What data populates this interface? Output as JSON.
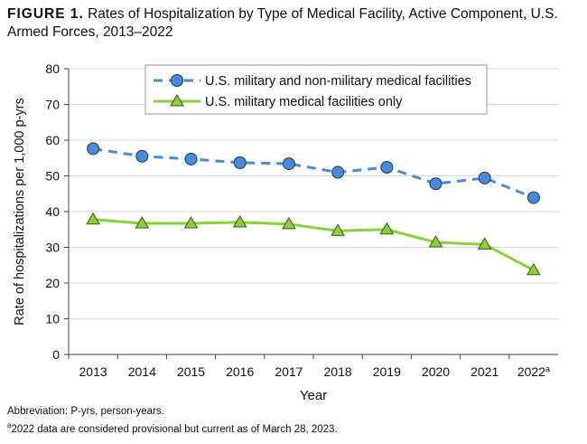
{
  "title": {
    "label": "FIGURE 1.",
    "text": "Rates of Hospitalization by Type of Medical Facility, Active Component, U.S. Armed Forces, 2013–2022"
  },
  "footnotes": {
    "abbrev": "Abbreviation: P-yrs, person-years.",
    "note_marker": "a",
    "note": "2022 data are considered provisional but current as of March 28, 2023."
  },
  "chart_data": {
    "type": "line",
    "title": "Rates of Hospitalization by Type of Medical Facility, Active Component, U.S. Armed Forces, 2013–2022",
    "xlabel": "Year",
    "ylabel": "Rate of hospitalizations per 1,000 p-yrs",
    "categories": [
      "2013",
      "2014",
      "2015",
      "2016",
      "2017",
      "2018",
      "2019",
      "2020",
      "2021",
      "2022"
    ],
    "category_superscripts": {
      "2022": "a"
    },
    "ylim": [
      0,
      80
    ],
    "yticks": [
      0,
      10,
      20,
      30,
      40,
      50,
      60,
      70,
      80
    ],
    "grid": true,
    "legend": "top-center",
    "series": [
      {
        "name": "U.S. military and non-military medical facilities",
        "color": "#4a8ad8",
        "style": "dashed",
        "marker": "circle",
        "values": [
          57.6,
          55.5,
          54.7,
          53.7,
          53.4,
          51.0,
          52.4,
          47.8,
          49.4,
          43.9
        ]
      },
      {
        "name": "U.S. military medical facilities only",
        "color": "#8ccf3e",
        "style": "solid",
        "marker": "triangle",
        "values": [
          37.8,
          36.7,
          36.7,
          37.0,
          36.5,
          34.6,
          35.0,
          31.4,
          30.8,
          23.6
        ]
      }
    ]
  }
}
